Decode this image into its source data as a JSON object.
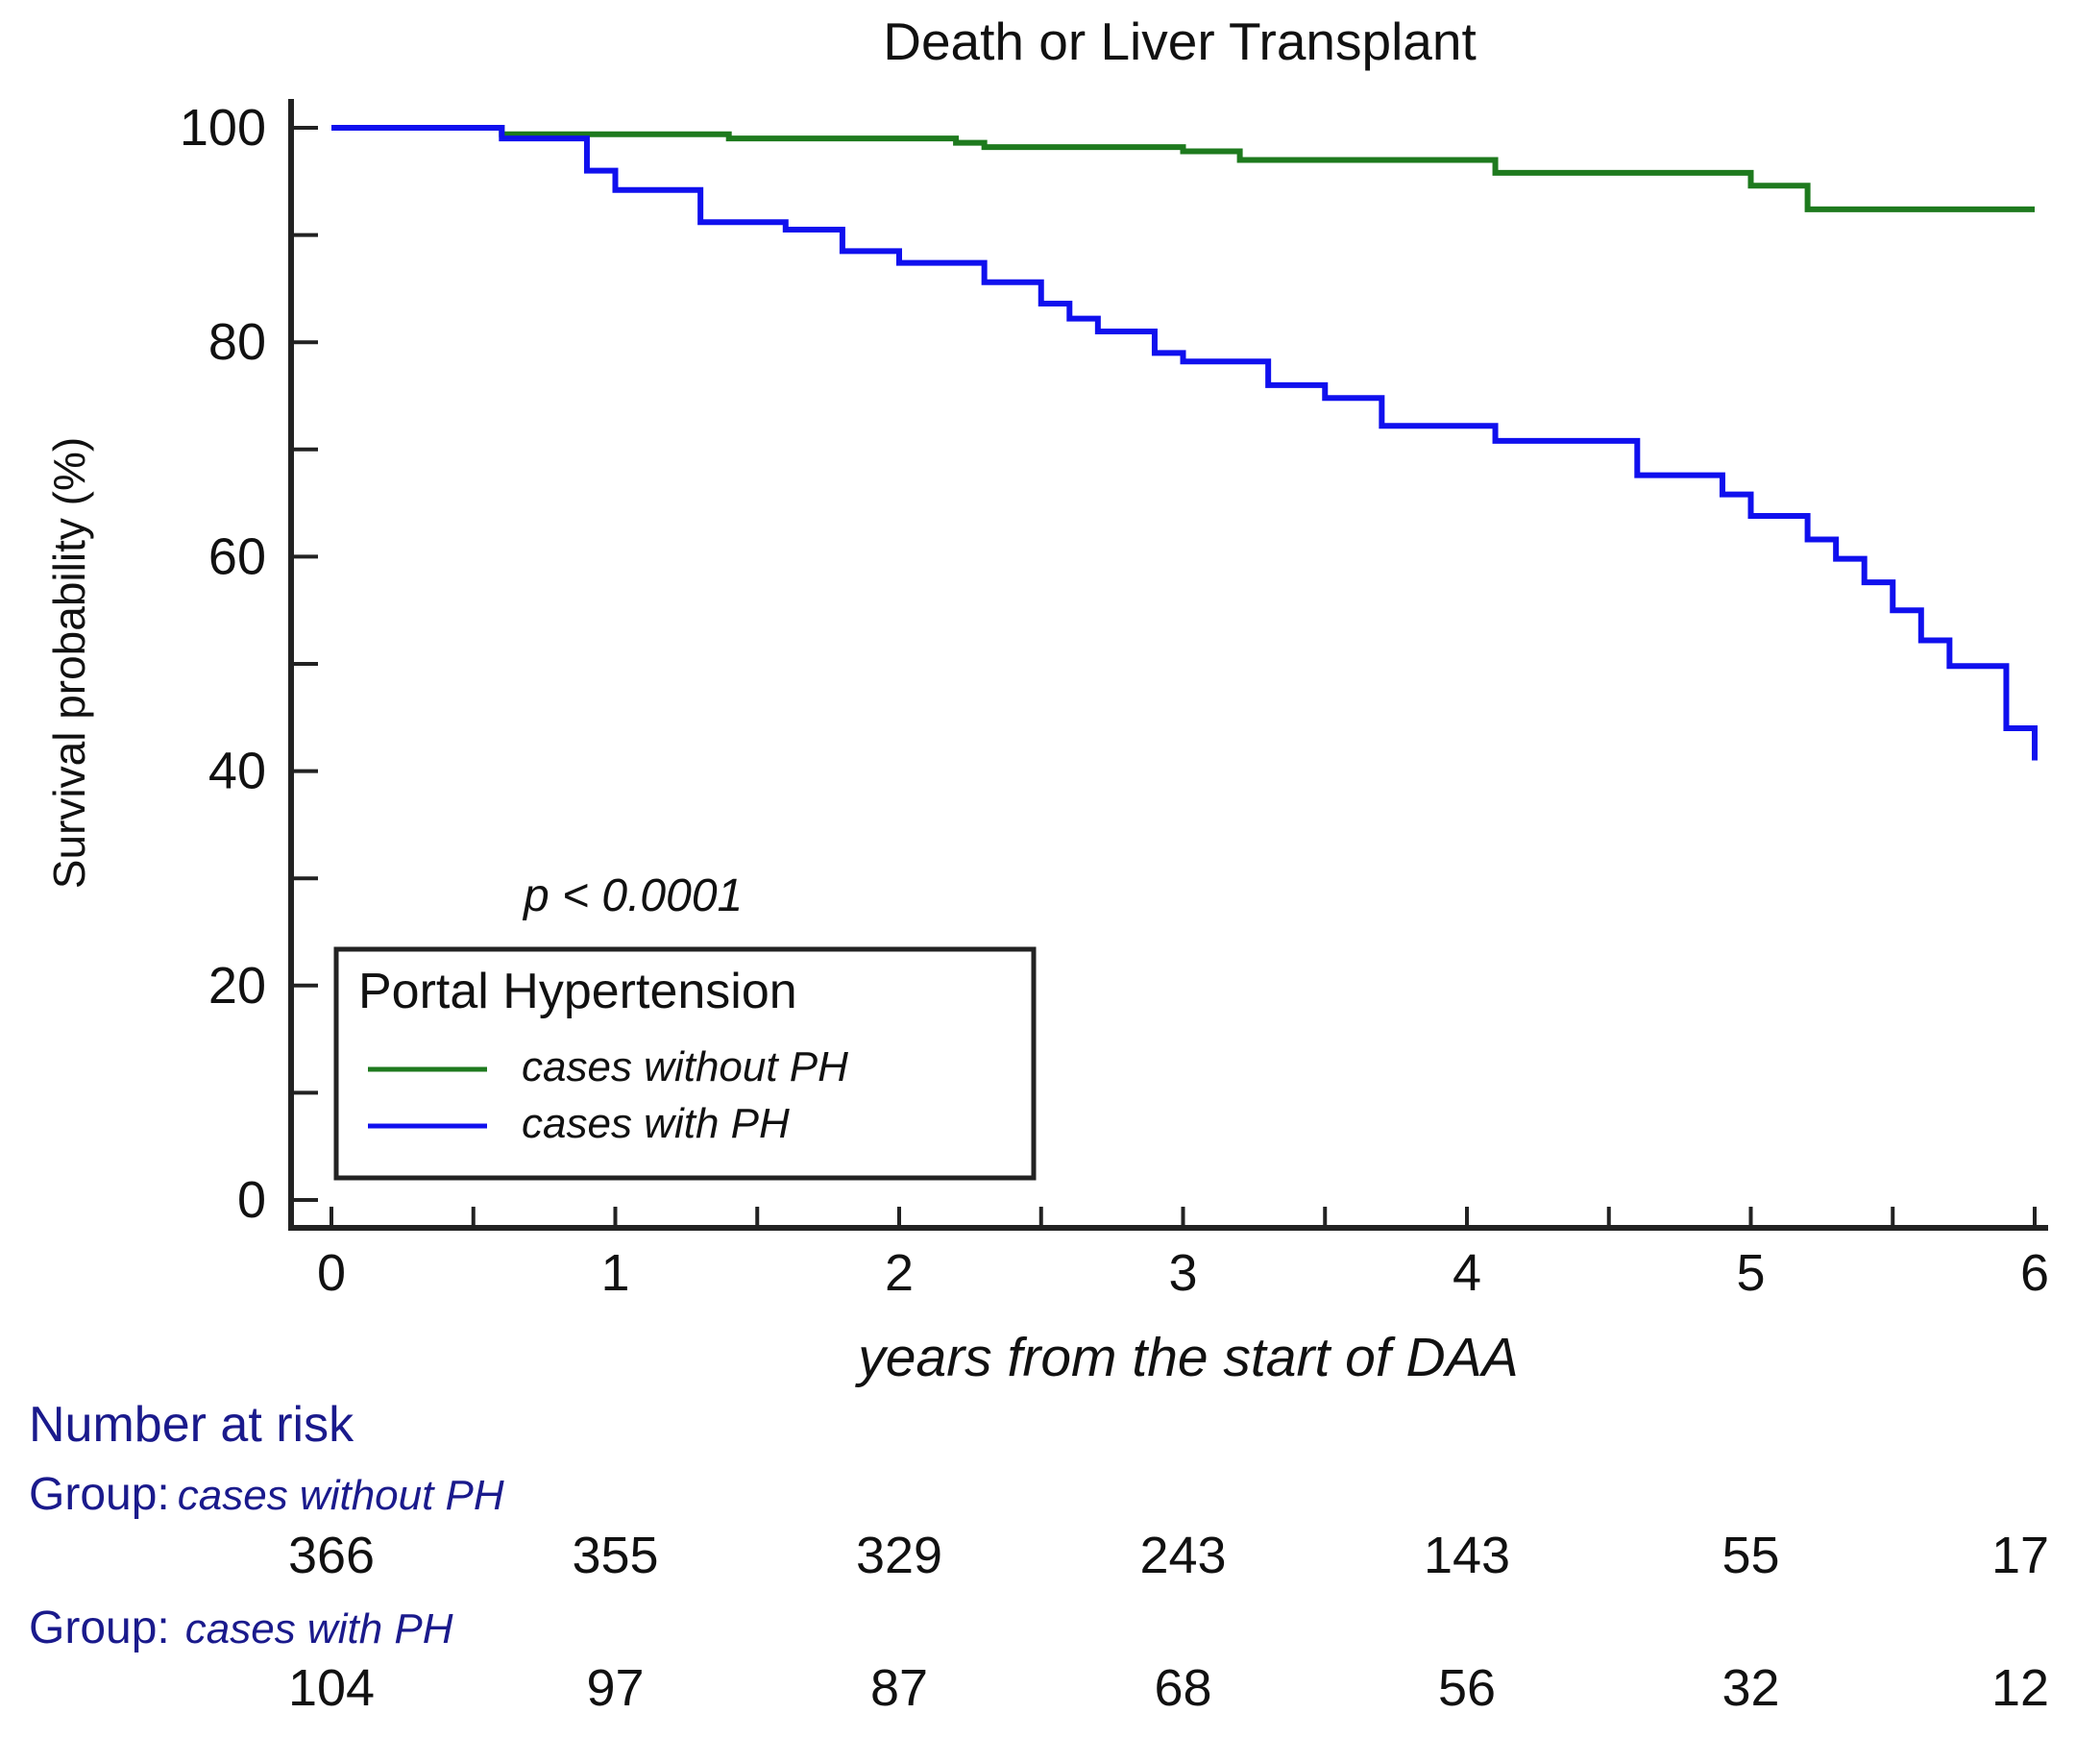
{
  "chart_data": {
    "type": "line",
    "subtype": "kaplan-meier step",
    "title": "Death or Liver Transplant",
    "xlabel": "years from the start of DAA",
    "ylabel": "Survival probability (%)",
    "xlim": [
      0,
      6
    ],
    "ylim": [
      0,
      100
    ],
    "x_ticks": [
      "0",
      "1",
      "2",
      "3",
      "4",
      "5",
      "6"
    ],
    "y_ticks": [
      "0",
      "20",
      "40",
      "60",
      "80",
      "100"
    ],
    "annotation": "p < 0.0001",
    "legend": {
      "title": "Portal Hypertension",
      "position": "bottom-left"
    },
    "series": [
      {
        "name": "cases without PH",
        "color": "#1e7a1e",
        "steps": [
          [
            0,
            100
          ],
          [
            0.6,
            99.4
          ],
          [
            1.4,
            99.0
          ],
          [
            2.2,
            98.6
          ],
          [
            2.3,
            98.2
          ],
          [
            3.0,
            97.8
          ],
          [
            3.2,
            97.0
          ],
          [
            4.1,
            95.8
          ],
          [
            5.0,
            94.6
          ],
          [
            5.2,
            92.4
          ],
          [
            6.0,
            92.4
          ]
        ]
      },
      {
        "name": "cases with PH",
        "color": "#1010ee",
        "steps": [
          [
            0,
            100
          ],
          [
            0.6,
            99.0
          ],
          [
            0.9,
            96.0
          ],
          [
            1.0,
            94.2
          ],
          [
            1.3,
            91.2
          ],
          [
            1.6,
            90.5
          ],
          [
            1.8,
            88.5
          ],
          [
            2.0,
            87.4
          ],
          [
            2.3,
            85.6
          ],
          [
            2.5,
            83.6
          ],
          [
            2.6,
            82.2
          ],
          [
            2.7,
            81.0
          ],
          [
            2.9,
            79.0
          ],
          [
            3.0,
            78.2
          ],
          [
            3.3,
            76.0
          ],
          [
            3.5,
            74.8
          ],
          [
            3.7,
            72.2
          ],
          [
            4.1,
            70.8
          ],
          [
            4.6,
            67.6
          ],
          [
            4.9,
            65.8
          ],
          [
            5.0,
            63.8
          ],
          [
            5.2,
            61.6
          ],
          [
            5.3,
            59.8
          ],
          [
            5.4,
            57.6
          ],
          [
            5.5,
            55.0
          ],
          [
            5.6,
            52.2
          ],
          [
            5.7,
            49.8
          ],
          [
            5.9,
            44.0
          ],
          [
            6.0,
            41.0
          ]
        ]
      }
    ],
    "risk_table": {
      "title": "Number at risk",
      "group_prefix": "Group:",
      "times": [
        0,
        1,
        2,
        3,
        4,
        5,
        6
      ],
      "groups": [
        {
          "name": "cases without PH",
          "values": [
            "366",
            "355",
            "329",
            "243",
            "143",
            "55",
            "17"
          ]
        },
        {
          "name": "cases with PH",
          "values": [
            "104",
            "97",
            "87",
            "68",
            "56",
            "32",
            "12"
          ]
        }
      ]
    }
  }
}
